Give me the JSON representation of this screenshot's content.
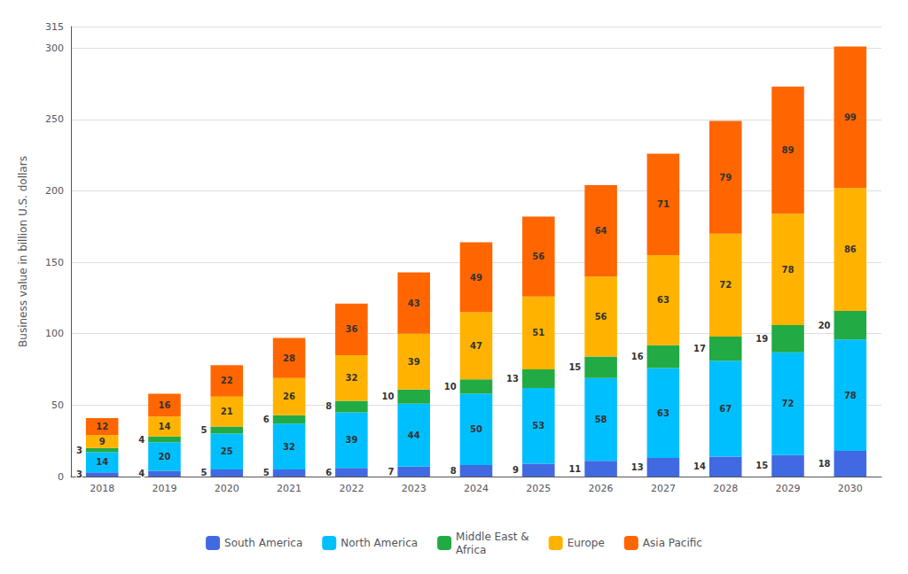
{
  "chart_data": {
    "type": "bar",
    "stacked": true,
    "categories": [
      "2018",
      "2019",
      "2020",
      "2021",
      "2022",
      "2023",
      "2024",
      "2025",
      "2026",
      "2027",
      "2028",
      "2029",
      "2030"
    ],
    "series": [
      {
        "name": "South America",
        "color": "#4169e1",
        "values": [
          3,
          4,
          5,
          5,
          6,
          7,
          8,
          9,
          11,
          13,
          14,
          15,
          18
        ]
      },
      {
        "name": "North America",
        "color": "#00bfff",
        "values": [
          14,
          20,
          25,
          32,
          39,
          44,
          50,
          53,
          58,
          63,
          67,
          72,
          78
        ]
      },
      {
        "name": "Middle East &\nAfrica",
        "color": "#22aa44",
        "values": [
          3,
          4,
          5,
          6,
          8,
          10,
          10,
          13,
          15,
          16,
          17,
          19,
          20
        ]
      },
      {
        "name": "Europe",
        "color": "#ffb300",
        "values": [
          9,
          14,
          21,
          26,
          32,
          39,
          47,
          51,
          56,
          63,
          72,
          78,
          86
        ]
      },
      {
        "name": "Asia Pacific",
        "color": "#ff6600",
        "values": [
          12,
          16,
          22,
          28,
          36,
          43,
          49,
          56,
          64,
          71,
          79,
          89,
          99
        ]
      }
    ],
    "ylabel": "Business value in billion U.S. dollars",
    "ylim": [
      0,
      315
    ],
    "yticks": [
      0,
      50,
      100,
      150,
      200,
      250,
      300
    ],
    "grid": true,
    "legend": "bottom",
    "data_labels": true
  }
}
